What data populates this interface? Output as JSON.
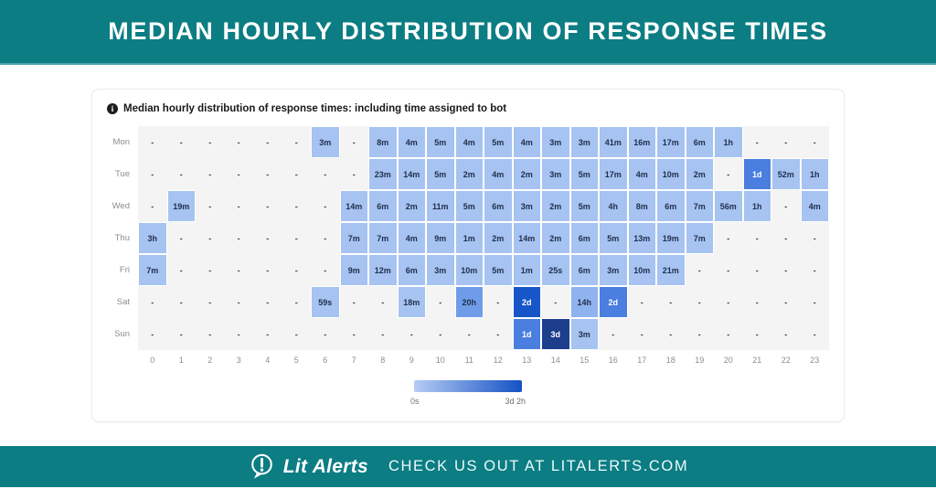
{
  "header": {
    "title": "MEDIAN HOURLY DISTRIBUTION OF RESPONSE TIMES"
  },
  "card": {
    "info_icon": "info-icon",
    "heading": "Median hourly distribution of response times: including time assigned to bot"
  },
  "chart_data": {
    "type": "heatmap",
    "title": "Median hourly distribution of response times: including time assigned to bot",
    "x_labels": [
      "0",
      "1",
      "2",
      "3",
      "4",
      "5",
      "6",
      "7",
      "8",
      "9",
      "10",
      "11",
      "12",
      "13",
      "14",
      "15",
      "16",
      "17",
      "18",
      "19",
      "20",
      "21",
      "22",
      "23"
    ],
    "y_labels": [
      "Mon",
      "Tue",
      "Wed",
      "Thu",
      "Fri",
      "Sat",
      "Sun"
    ],
    "palette": [
      "#a6c3f1",
      "#8fb3ee",
      "#6f9ce8",
      "#4a7fe0",
      "#1656c8",
      "#1d3e8d"
    ],
    "empty_color": "#f4f4f5",
    "rows": [
      {
        "day": "Mon",
        "values": [
          "-",
          "-",
          "-",
          "-",
          "-",
          "-",
          "3m",
          "-",
          "8m",
          "4m",
          "5m",
          "4m",
          "5m",
          "4m",
          "3m",
          "3m",
          "41m",
          "16m",
          "17m",
          "6m",
          "1h",
          "-",
          "-",
          "-"
        ],
        "levels": [
          -1,
          -1,
          -1,
          -1,
          -1,
          -1,
          0,
          -1,
          0,
          0,
          0,
          0,
          0,
          0,
          0,
          0,
          0,
          0,
          0,
          0,
          0,
          -1,
          -1,
          -1
        ]
      },
      {
        "day": "Tue",
        "values": [
          "-",
          "-",
          "-",
          "-",
          "-",
          "-",
          "-",
          "-",
          "23m",
          "14m",
          "5m",
          "2m",
          "4m",
          "2m",
          "3m",
          "5m",
          "17m",
          "4m",
          "10m",
          "2m",
          "-",
          "1d",
          "52m",
          "1h"
        ],
        "levels": [
          -1,
          -1,
          -1,
          -1,
          -1,
          -1,
          -1,
          -1,
          0,
          0,
          0,
          0,
          0,
          0,
          0,
          0,
          0,
          0,
          0,
          0,
          -1,
          3,
          0,
          0
        ]
      },
      {
        "day": "Wed",
        "values": [
          "-",
          "19m",
          "-",
          "-",
          "-",
          "-",
          "-",
          "14m",
          "6m",
          "2m",
          "11m",
          "5m",
          "6m",
          "3m",
          "2m",
          "5m",
          "4h",
          "8m",
          "6m",
          "7m",
          "56m",
          "1h",
          "-",
          "4m"
        ],
        "levels": [
          -1,
          0,
          -1,
          -1,
          -1,
          -1,
          -1,
          0,
          0,
          0,
          0,
          0,
          0,
          0,
          0,
          0,
          0,
          0,
          0,
          0,
          0,
          0,
          -1,
          0
        ]
      },
      {
        "day": "Thu",
        "values": [
          "3h",
          "-",
          "-",
          "-",
          "-",
          "-",
          "-",
          "7m",
          "7m",
          "4m",
          "9m",
          "1m",
          "2m",
          "14m",
          "2m",
          "6m",
          "5m",
          "13m",
          "19m",
          "7m",
          "-",
          "-",
          "-",
          "-"
        ],
        "levels": [
          0,
          -1,
          -1,
          -1,
          -1,
          -1,
          -1,
          0,
          0,
          0,
          0,
          0,
          0,
          0,
          0,
          0,
          0,
          0,
          0,
          0,
          -1,
          -1,
          -1,
          -1
        ]
      },
      {
        "day": "Fri",
        "values": [
          "7m",
          "-",
          "-",
          "-",
          "-",
          "-",
          "-",
          "9m",
          "12m",
          "6m",
          "3m",
          "10m",
          "5m",
          "1m",
          "25s",
          "6m",
          "3m",
          "10m",
          "21m",
          "-",
          "-",
          "-",
          "-",
          "-"
        ],
        "levels": [
          0,
          -1,
          -1,
          -1,
          -1,
          -1,
          -1,
          0,
          0,
          0,
          0,
          0,
          0,
          0,
          0,
          0,
          0,
          0,
          0,
          -1,
          -1,
          -1,
          -1,
          -1
        ]
      },
      {
        "day": "Sat",
        "values": [
          "-",
          "-",
          "-",
          "-",
          "-",
          "-",
          "59s",
          "-",
          "-",
          "18m",
          "-",
          "20h",
          "-",
          "2d",
          "-",
          "14h",
          "2d",
          "-",
          "-",
          "-",
          "-",
          "-",
          "-",
          "-"
        ],
        "levels": [
          -1,
          -1,
          -1,
          -1,
          -1,
          -1,
          0,
          -1,
          -1,
          0,
          -1,
          2,
          -1,
          4,
          -1,
          1,
          3,
          -1,
          -1,
          -1,
          -1,
          -1,
          -1,
          -1
        ]
      },
      {
        "day": "Sun",
        "values": [
          "-",
          "-",
          "-",
          "-",
          "-",
          "-",
          "-",
          "-",
          "-",
          "-",
          "-",
          "-",
          "-",
          "1d",
          "3d",
          "3m",
          "-",
          "-",
          "-",
          "-",
          "-",
          "-",
          "-",
          "-"
        ],
        "levels": [
          -1,
          -1,
          -1,
          -1,
          -1,
          -1,
          -1,
          -1,
          -1,
          -1,
          -1,
          -1,
          -1,
          3,
          5,
          0,
          -1,
          -1,
          -1,
          -1,
          -1,
          -1,
          -1,
          -1
        ]
      }
    ],
    "legend": {
      "min_label": "0s",
      "max_label": "3d 2h",
      "gradient_from": "#b6ccf4",
      "gradient_to": "#1551c4"
    },
    "grid": false,
    "legend_position": "bottom-center"
  },
  "footer": {
    "logo": "exclamation-speech-bubble-icon",
    "brand": "Lit Alerts",
    "tagline": "CHECK US OUT AT LITALERTS.COM"
  },
  "colors": {
    "teal": "#0b7d83",
    "card_border": "#e9e9e9",
    "empty_cell": "#f4f4f5",
    "cell_text_dark": "#222f4e",
    "cell_text_light": "#ffffff",
    "axis_text": "#8b8d90"
  }
}
